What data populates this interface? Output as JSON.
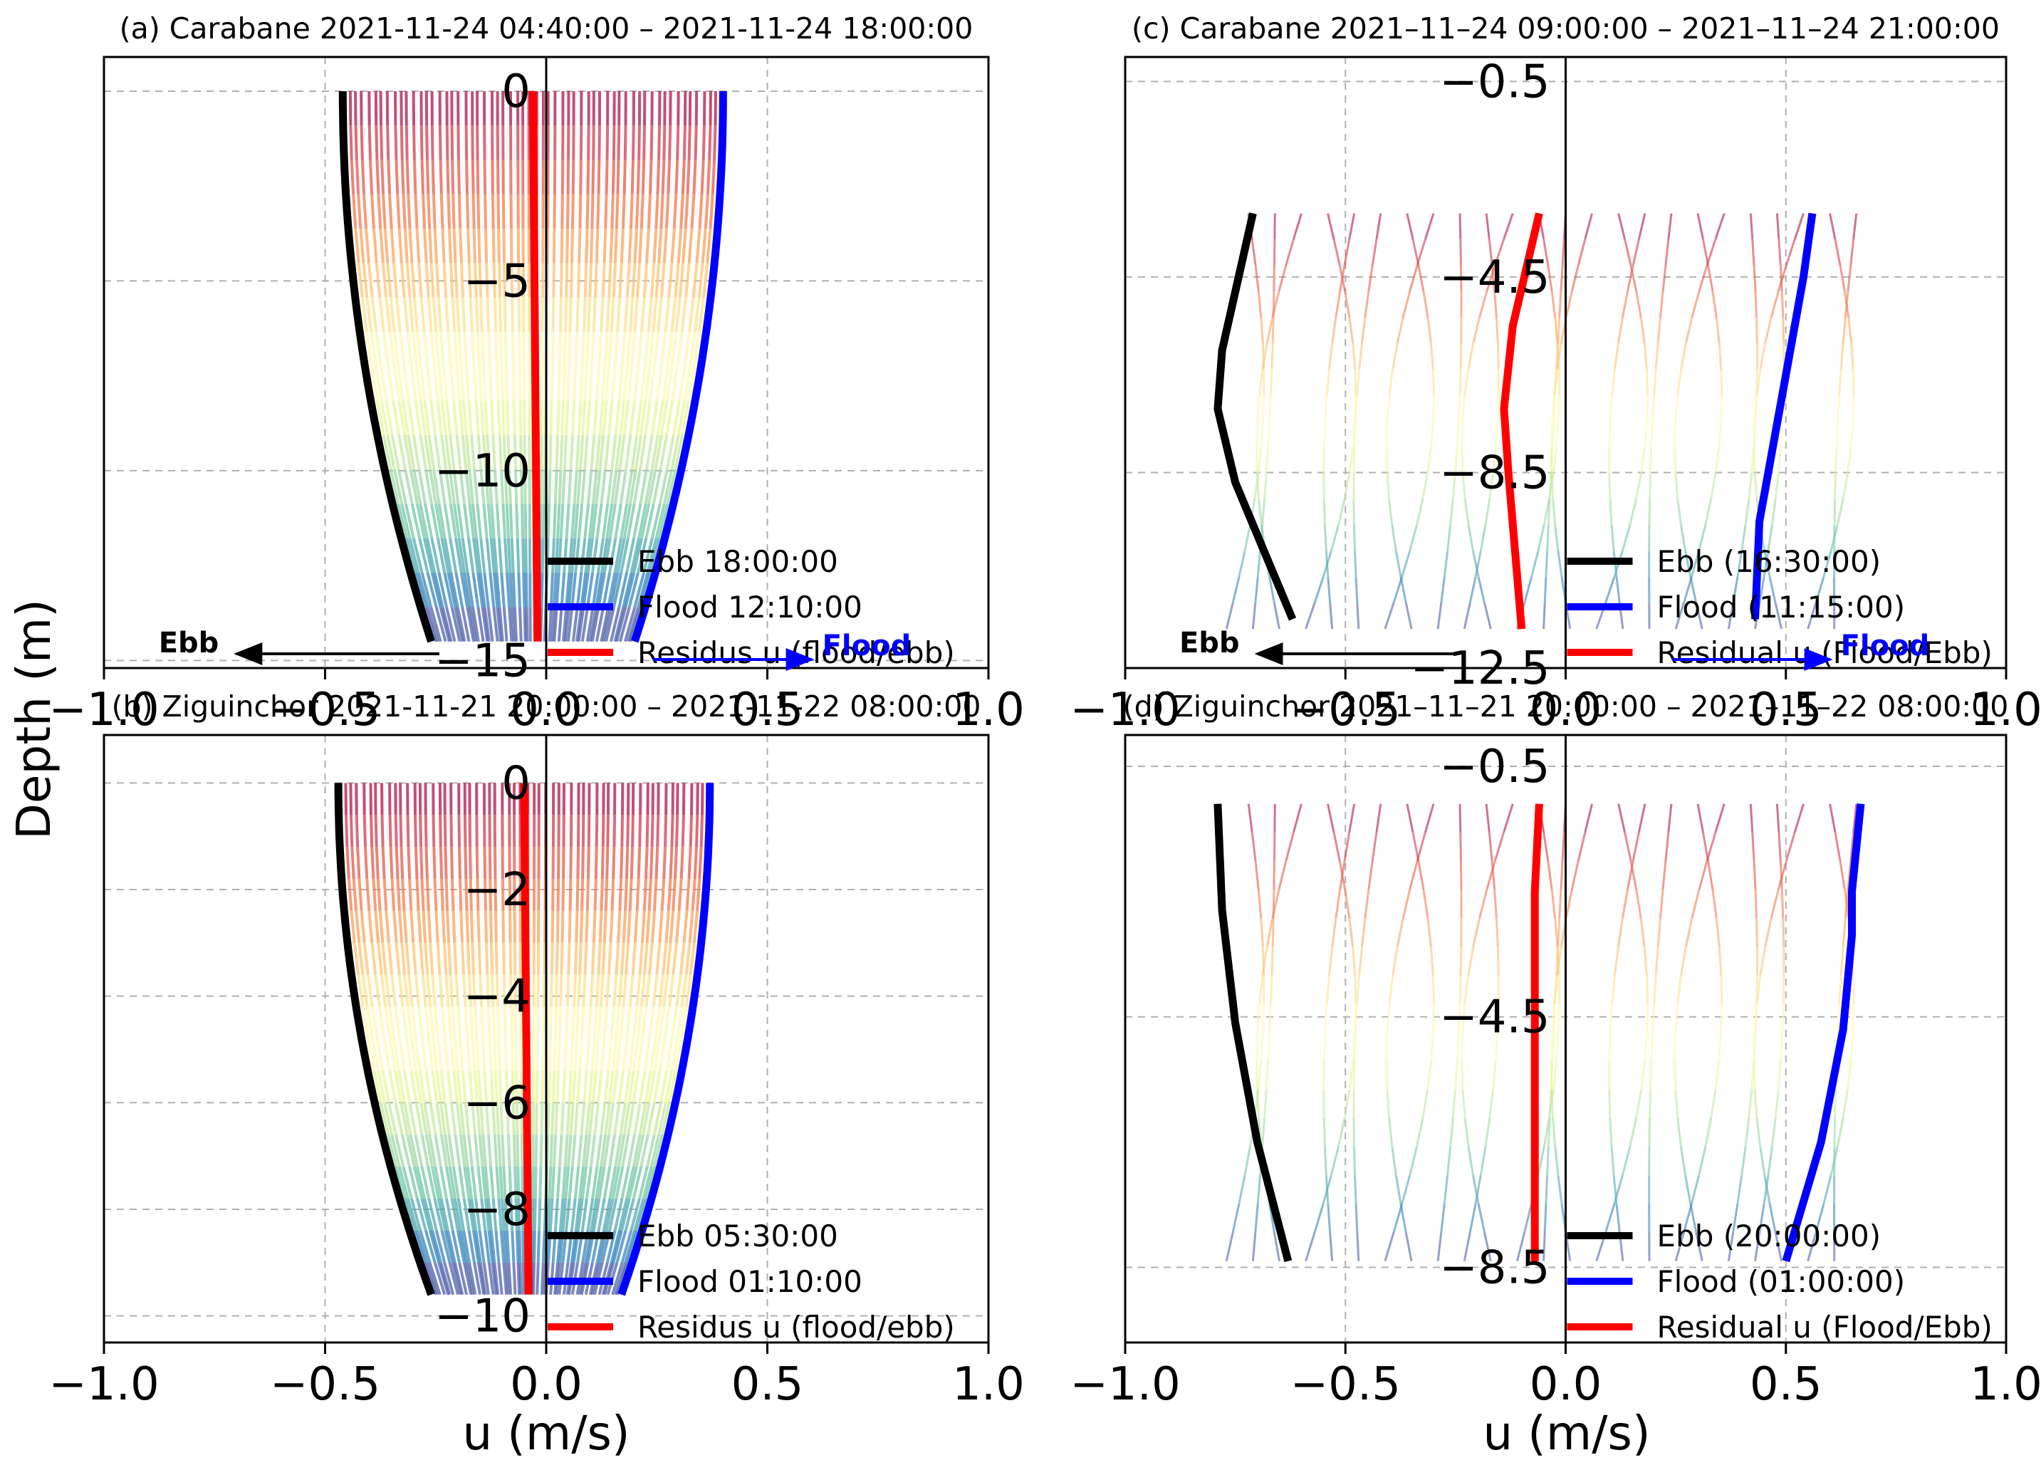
{
  "figure": {
    "ylabel": "Depth (m)",
    "xlabel": "u (m/s)"
  },
  "chart_data": [
    {
      "id": "a",
      "type": "line",
      "title": "(a) Carabane 2021-11-24 04:40:00 – 2021-11-24 18:00:00",
      "xlabel": "u (m/s)",
      "ylabel": "Depth (m)",
      "xlim": [
        -1.0,
        1.0
      ],
      "ylim": [
        -15.2,
        0.9
      ],
      "xticks": [
        "−1.0",
        "−0.5",
        "0.0",
        "0.5",
        "1.0"
      ],
      "yticks": [
        0,
        -5,
        -10,
        -15
      ],
      "ytick_labels": [
        "0",
        "−5",
        "−10",
        "−15"
      ],
      "grid": true,
      "profile_depth": {
        "top": 0,
        "bottom": -14.5
      },
      "profile_count": 60,
      "series": [
        {
          "name": "Ebb  18:00:00",
          "color": "#000000",
          "surface_u": -0.46,
          "bottom_u": -0.26,
          "shape": "parabolic"
        },
        {
          "name": "Flood  12:10:00",
          "color": "#0000ff",
          "surface_u": 0.4,
          "bottom_u": 0.2,
          "shape": "parabolic"
        },
        {
          "name": "Residus u (flood/ebb)",
          "color": "#ff0000",
          "surface_u": -0.03,
          "bottom_u": -0.02,
          "shape": "linear"
        }
      ],
      "annotations": {
        "ebb_arrow": "Ebb",
        "flood_arrow": "Flood"
      },
      "legend": "bottom-right"
    },
    {
      "id": "b",
      "type": "line",
      "title": "(b) Ziguinchor 2021-11-21 20:00:00 – 2021-11-22 08:00:00",
      "xlabel": "u (m/s)",
      "ylabel": "Depth (m)",
      "xlim": [
        -1.0,
        1.0
      ],
      "ylim": [
        -10.5,
        0.9
      ],
      "xticks": [
        "−1.0",
        "−0.5",
        "0.0",
        "0.5",
        "1.0"
      ],
      "yticks": [
        0,
        -2,
        -4,
        -6,
        -8,
        -10
      ],
      "ytick_labels": [
        "0",
        "−2",
        "−4",
        "−6",
        "−8",
        "−10"
      ],
      "grid": true,
      "profile_depth": {
        "top": 0,
        "bottom": -9.6
      },
      "profile_count": 60,
      "series": [
        {
          "name": "Ebb  05:30:00",
          "color": "#000000",
          "surface_u": -0.47,
          "bottom_u": -0.26,
          "shape": "parabolic"
        },
        {
          "name": "Flood  01:10:00",
          "color": "#0000ff",
          "surface_u": 0.37,
          "bottom_u": 0.17,
          "shape": "parabolic"
        },
        {
          "name": "Residus u (flood/ebb)",
          "color": "#ff0000",
          "surface_u": -0.05,
          "bottom_u": -0.04,
          "shape": "linear"
        }
      ],
      "legend": "bottom-right"
    },
    {
      "id": "c",
      "type": "line",
      "title": "(c) Carabane 2021–11–24 09:00:00 – 2021–11–24 21:00:00",
      "xlabel": "u (m/s)",
      "ylabel": "Depth (m)",
      "xlim": [
        -1.0,
        1.0
      ],
      "ylim": [
        -12.5,
        0.0
      ],
      "xticks": [
        "−1.0",
        "−0.5",
        "0.0",
        "0.5",
        "1.0"
      ],
      "yticks": [
        -0.5,
        -4.5,
        -8.5,
        -12.5
      ],
      "ytick_labels": [
        "−0.5",
        "−4.5",
        "−8.5",
        "−12.5"
      ],
      "grid": true,
      "profile_depth": {
        "top": -3.2,
        "bottom": -11.7
      },
      "profile_count": 24,
      "series": [
        {
          "name": "Ebb (16:30:00)",
          "color": "#000000",
          "points": [
            [
              -0.71,
              -3.2
            ],
            [
              -0.78,
              -6.0
            ],
            [
              -0.79,
              -7.2
            ],
            [
              -0.75,
              -8.7
            ],
            [
              -0.62,
              -11.5
            ]
          ]
        },
        {
          "name": "Flood (11:15:00)",
          "color": "#0000ff",
          "points": [
            [
              0.56,
              -3.2
            ],
            [
              0.54,
              -4.5
            ],
            [
              0.5,
              -6.5
            ],
            [
              0.44,
              -9.5
            ],
            [
              0.43,
              -11.5
            ]
          ]
        },
        {
          "name": "Residual u (Flood/Ebb)",
          "color": "#ff0000",
          "points": [
            [
              -0.06,
              -3.2
            ],
            [
              -0.12,
              -5.5
            ],
            [
              -0.14,
              -7.2
            ],
            [
              -0.13,
              -8.5
            ],
            [
              -0.1,
              -11.7
            ]
          ]
        }
      ],
      "annotations": {
        "ebb_arrow": "Ebb",
        "flood_arrow": "Flood"
      },
      "legend": "bottom-right"
    },
    {
      "id": "d",
      "type": "line",
      "title": "(d) Ziguinchor 2021–11–21 20:00:00 – 2021–11–22 08:00:00",
      "xlabel": "u (m/s)",
      "ylabel": "Depth (m)",
      "xlim": [
        -1.0,
        1.0
      ],
      "ylim": [
        -9.7,
        0.0
      ],
      "xticks": [
        "−1.0",
        "−0.5",
        "0.0",
        "0.5",
        "1.0"
      ],
      "yticks": [
        -0.5,
        -4.5,
        -8.5
      ],
      "ytick_labels": [
        "−0.5",
        "−4.5",
        "−8.5"
      ],
      "grid": true,
      "profile_depth": {
        "top": -1.1,
        "bottom": -8.4
      },
      "profile_count": 24,
      "series": [
        {
          "name": "Ebb (20:00:00)",
          "color": "#000000",
          "points": [
            [
              -0.79,
              -1.1
            ],
            [
              -0.78,
              -2.8
            ],
            [
              -0.75,
              -4.6
            ],
            [
              -0.7,
              -6.5
            ],
            [
              -0.63,
              -8.4
            ]
          ]
        },
        {
          "name": "Flood (01:00:00)",
          "color": "#0000ff",
          "points": [
            [
              0.67,
              -1.1
            ],
            [
              0.65,
              -2.5
            ],
            [
              0.65,
              -3.2
            ],
            [
              0.63,
              -4.7
            ],
            [
              0.58,
              -6.5
            ],
            [
              0.5,
              -8.4
            ]
          ]
        },
        {
          "name": "Residual u (Flood/Ebb)",
          "color": "#ff0000",
          "points": [
            [
              -0.06,
              -1.1
            ],
            [
              -0.07,
              -2.5
            ],
            [
              -0.07,
              -4.5
            ],
            [
              -0.07,
              -6.5
            ],
            [
              -0.07,
              -8.4
            ]
          ]
        }
      ],
      "legend": "bottom-right"
    }
  ]
}
